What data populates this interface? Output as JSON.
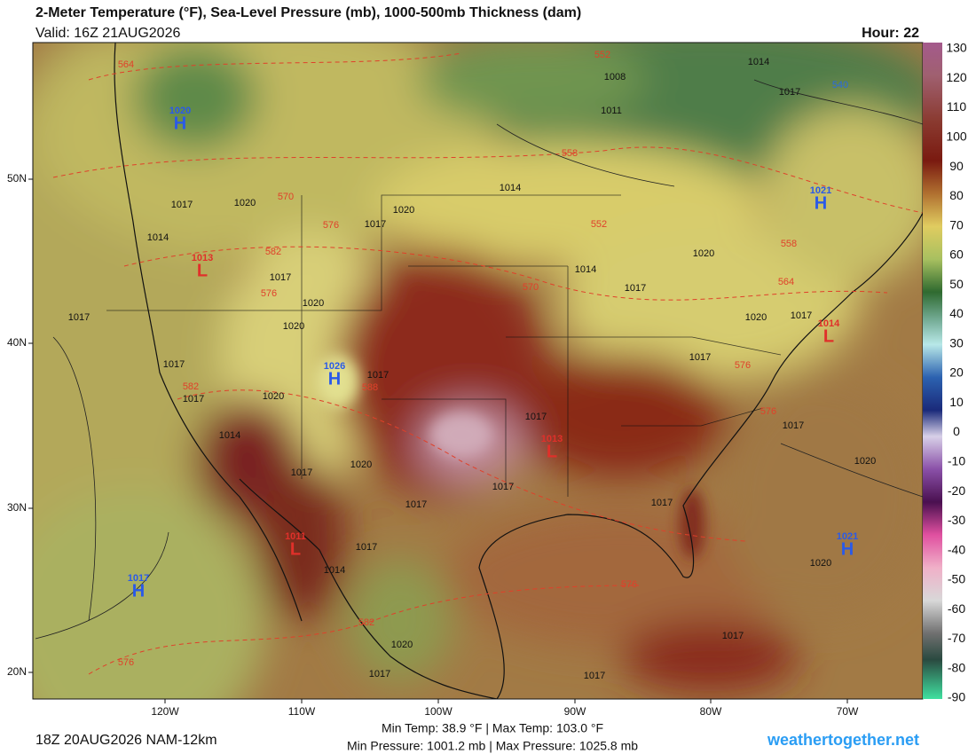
{
  "header": {
    "title": "2-Meter Temperature (°F), Sea-Level Pressure (mb), 1000-500mb Thickness (dam)",
    "valid": "Valid: 16Z 21AUG2026",
    "hour": "Hour: 22"
  },
  "colorbar": {
    "labels": [
      130,
      120,
      110,
      100,
      90,
      80,
      70,
      60,
      50,
      40,
      30,
      20,
      10,
      0,
      -10,
      -20,
      -30,
      -40,
      -50,
      -60,
      -70,
      -80,
      -90
    ]
  },
  "latitude_labels": [
    "50N",
    "40N",
    "30N",
    "20N"
  ],
  "longitude_labels": [
    "120W",
    "110W",
    "100W",
    "90W",
    "80W",
    "70W"
  ],
  "pressure_centers": [
    {
      "letter": "H",
      "value": "1020"
    },
    {
      "letter": "H",
      "value": "1021"
    },
    {
      "letter": "H",
      "value": "1026"
    },
    {
      "letter": "L",
      "value": "1013"
    },
    {
      "letter": "L",
      "value": "1011"
    },
    {
      "letter": "H",
      "value": "1021"
    },
    {
      "letter": "H",
      "value": "1017"
    },
    {
      "letter": "L",
      "value": "1013"
    },
    {
      "letter": "L",
      "value": "1014"
    }
  ],
  "isobar_labels": [
    "1008",
    "1011",
    "1014",
    "1017",
    "1017",
    "1020",
    "1014",
    "1020",
    "1017",
    "1014",
    "1020",
    "1014",
    "1017",
    "1017",
    "1020",
    "1020",
    "1017",
    "1017",
    "1017",
    "1020",
    "1017",
    "1014",
    "1017",
    "1020",
    "1017",
    "1017",
    "1017",
    "1017",
    "1020",
    "1017",
    "1017",
    "1020",
    "1020",
    "1017",
    "1017",
    "1014",
    "1020",
    "1017",
    "1017",
    "1017"
  ],
  "thickness_labels": [
    "564",
    "552",
    "540",
    "558",
    "570",
    "576",
    "582",
    "570",
    "564",
    "558",
    "552",
    "576",
    "582",
    "588",
    "576",
    "576",
    "576",
    "582",
    "576"
  ],
  "footer": {
    "run": "18Z 20AUG2026 NAM-12km",
    "min_max_temp": "Min Temp:  38.9 °F | Max Temp: 103.0 °F",
    "min_max_pressure": "Min Pressure: 1001.2 mb | Max Pressure: 1025.8 mb",
    "site": "weathertogether.net"
  }
}
